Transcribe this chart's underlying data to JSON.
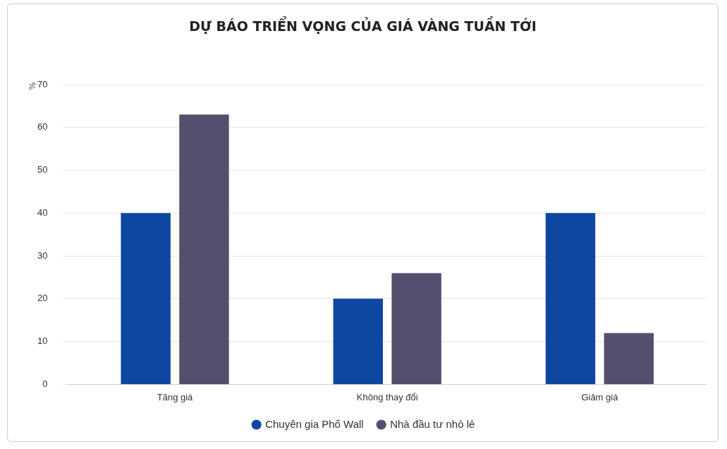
{
  "chart_data": {
    "type": "bar",
    "title": "DỰ BÁO TRIỂN VỌNG CỦA GIÁ VÀNG TUẦN TỚI",
    "ylabel": "%",
    "categories": [
      "Tăng giá",
      "Không thay đổi",
      "Giảm giá"
    ],
    "series": [
      {
        "name": "Chuyên gia Phố Wall",
        "color": "#0e47a1",
        "values": [
          40,
          20,
          40
        ]
      },
      {
        "name": "Nhà đầu tư nhỏ lẻ",
        "color": "#554e6e",
        "values": [
          63,
          26,
          12
        ]
      }
    ],
    "ylim": [
      0,
      70
    ],
    "yticks": [
      0,
      10,
      20,
      30,
      40,
      50,
      60,
      70
    ],
    "grid": "y",
    "legend": "bottom"
  }
}
